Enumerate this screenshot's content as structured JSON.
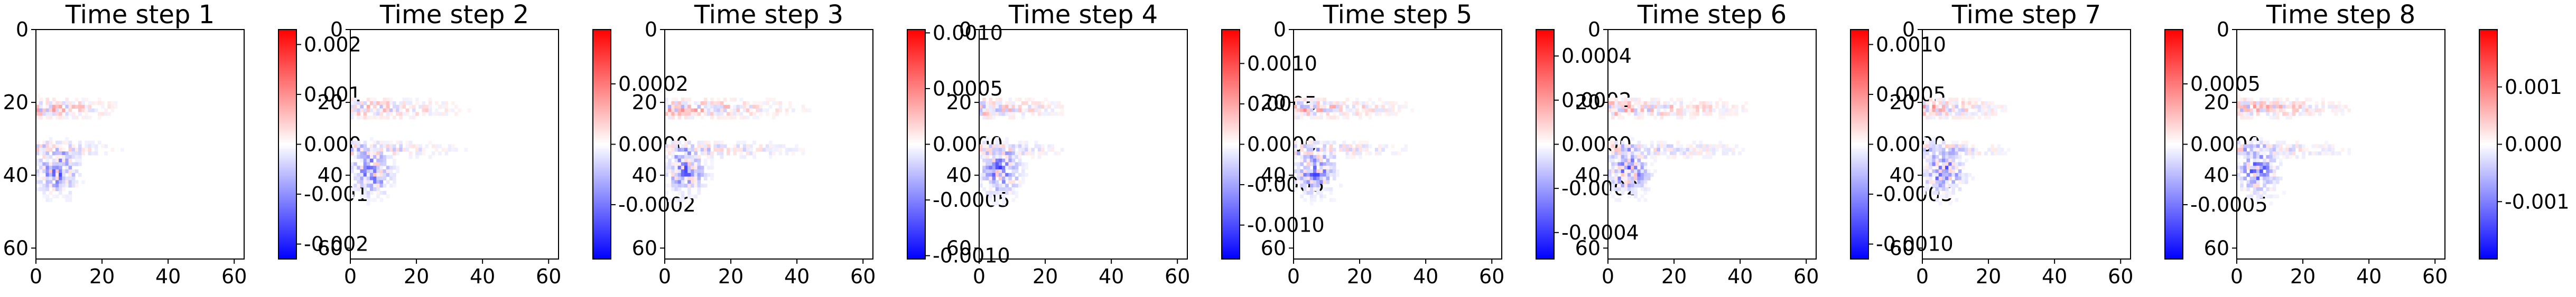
{
  "chart_data": [
    {
      "type": "heatmap",
      "title": "Time step 1",
      "colormap": "bwr",
      "colorbar_ticks": [
        "0.002",
        "0.001",
        "0.000",
        "-0.001",
        "-0.002"
      ],
      "colorbar_tick_values": [
        0.002,
        0.001,
        0.0,
        -0.001,
        -0.002
      ],
      "colorbar_range": [
        -0.0023,
        0.0023
      ],
      "x_ticks": [
        "0",
        "20",
        "40",
        "60"
      ],
      "y_ticks": [
        "0",
        "20",
        "40",
        "60"
      ],
      "xlim": [
        0,
        63
      ],
      "ylim": [
        63,
        0
      ],
      "grid": false
    },
    {
      "type": "heatmap",
      "title": "Time step 2",
      "colormap": "bwr",
      "colorbar_ticks": [
        "0.0002",
        "0.0000",
        "-0.0002"
      ],
      "colorbar_tick_values": [
        0.0002,
        0.0,
        -0.0002
      ],
      "colorbar_range": [
        -0.00038,
        0.00038
      ],
      "x_ticks": [
        "0",
        "20",
        "40",
        "60"
      ],
      "y_ticks": [
        "0",
        "20",
        "40",
        "60"
      ],
      "xlim": [
        0,
        63
      ],
      "ylim": [
        63,
        0
      ],
      "grid": false
    },
    {
      "type": "heatmap",
      "title": "Time step 3",
      "colormap": "bwr",
      "colorbar_ticks": [
        "0.0010",
        "0.0005",
        "0.0000",
        "-0.0005",
        "-0.0010"
      ],
      "colorbar_tick_values": [
        0.001,
        0.0005,
        0.0,
        -0.0005,
        -0.001
      ],
      "colorbar_range": [
        -0.00103,
        0.00103
      ],
      "x_ticks": [
        "0",
        "20",
        "40",
        "60"
      ],
      "y_ticks": [
        "0",
        "20",
        "40",
        "60"
      ],
      "xlim": [
        0,
        63
      ],
      "ylim": [
        63,
        0
      ],
      "grid": false
    },
    {
      "type": "heatmap",
      "title": "Time step 4",
      "colormap": "bwr",
      "colorbar_ticks": [
        "0.0010",
        "0.0005",
        "0.0000",
        "-0.0005",
        "-0.0010"
      ],
      "colorbar_tick_values": [
        0.001,
        0.0005,
        0.0,
        -0.0005,
        -0.001
      ],
      "colorbar_range": [
        -0.00142,
        0.00142
      ],
      "x_ticks": [
        "0",
        "20",
        "40",
        "60"
      ],
      "y_ticks": [
        "0",
        "20",
        "40",
        "60"
      ],
      "xlim": [
        0,
        63
      ],
      "ylim": [
        63,
        0
      ],
      "grid": false
    },
    {
      "type": "heatmap",
      "title": "Time step 5",
      "colormap": "bwr",
      "colorbar_ticks": [
        "0.0004",
        "0.0002",
        "0.0000",
        "-0.0002",
        "-0.0004"
      ],
      "colorbar_tick_values": [
        0.0004,
        0.0002,
        0.0,
        -0.0002,
        -0.0004
      ],
      "colorbar_range": [
        -0.00052,
        0.00052
      ],
      "x_ticks": [
        "0",
        "20",
        "40",
        "60"
      ],
      "y_ticks": [
        "0",
        "20",
        "40",
        "60"
      ],
      "xlim": [
        0,
        63
      ],
      "ylim": [
        63,
        0
      ],
      "grid": false
    },
    {
      "type": "heatmap",
      "title": "Time step 6",
      "colormap": "bwr",
      "colorbar_ticks": [
        "0.0010",
        "0.0005",
        "0.0000",
        "-0.0005",
        "-0.0010"
      ],
      "colorbar_tick_values": [
        0.001,
        0.0005,
        0.0,
        -0.0005,
        -0.001
      ],
      "colorbar_range": [
        -0.00115,
        0.00115
      ],
      "x_ticks": [
        "0",
        "20",
        "40",
        "60"
      ],
      "y_ticks": [
        "0",
        "20",
        "40",
        "60"
      ],
      "xlim": [
        0,
        63
      ],
      "ylim": [
        63,
        0
      ],
      "grid": false
    },
    {
      "type": "heatmap",
      "title": "Time step 7",
      "colormap": "bwr",
      "colorbar_ticks": [
        "0.0005",
        "0.0000",
        "-0.0005"
      ],
      "colorbar_tick_values": [
        0.0005,
        0.0,
        -0.0005
      ],
      "colorbar_range": [
        -0.00095,
        0.00095
      ],
      "x_ticks": [
        "0",
        "20",
        "40",
        "60"
      ],
      "y_ticks": [
        "0",
        "20",
        "40",
        "60"
      ],
      "xlim": [
        0,
        63
      ],
      "ylim": [
        63,
        0
      ],
      "grid": false
    },
    {
      "type": "heatmap",
      "title": "Time step 8",
      "colormap": "bwr",
      "colorbar_ticks": [
        "0.001",
        "0.000",
        "-0.001"
      ],
      "colorbar_tick_values": [
        0.001,
        0.0,
        -0.001
      ],
      "colorbar_range": [
        -0.002,
        0.002
      ],
      "x_ticks": [
        "0",
        "20",
        "40",
        "60"
      ],
      "y_ticks": [
        "0",
        "20",
        "40",
        "60"
      ],
      "xlim": [
        0,
        63
      ],
      "ylim": [
        63,
        0
      ],
      "grid": false
    }
  ]
}
